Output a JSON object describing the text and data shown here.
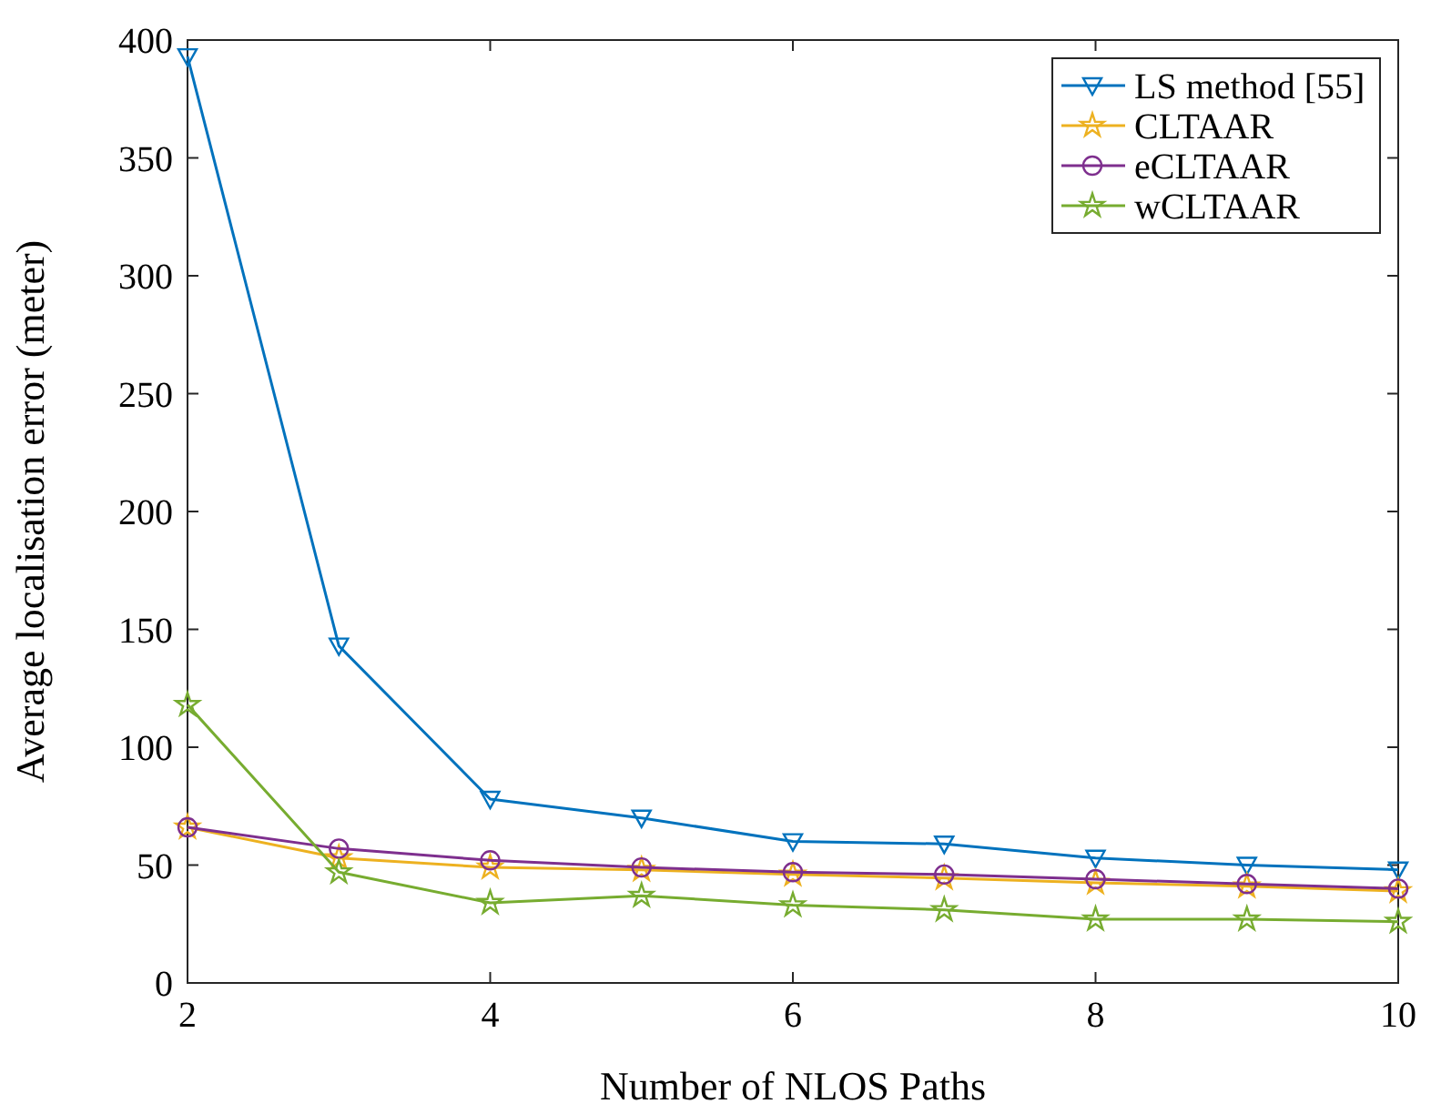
{
  "chart_data": {
    "type": "line",
    "xlabel": "Number of NLOS Paths",
    "ylabel": "Average localisation error (meter)",
    "x": [
      2,
      3,
      4,
      5,
      6,
      7,
      8,
      9,
      10
    ],
    "series": [
      {
        "name": "LS method [55]",
        "color": "#0072bd",
        "marker": "triangle",
        "values": [
          393,
          143,
          78,
          70,
          60,
          59,
          53,
          50,
          48
        ]
      },
      {
        "name": "CLTAAR",
        "color": "#edb120",
        "marker": "star",
        "values": [
          66,
          53,
          49,
          48,
          46,
          44.5,
          42.5,
          41,
          39
        ]
      },
      {
        "name": "eCLTAAR",
        "color": "#7e2f8e",
        "marker": "circle",
        "values": [
          66,
          57,
          52,
          49,
          47,
          46,
          44,
          42,
          40
        ]
      },
      {
        "name": "wCLTAAR",
        "color": "#77ac30",
        "marker": "star",
        "values": [
          118,
          47,
          34,
          37,
          33,
          31,
          27,
          27,
          26
        ]
      }
    ],
    "xlim": [
      2,
      10
    ],
    "xticks": [
      2,
      4,
      6,
      8,
      10
    ],
    "ylim": [
      0,
      400
    ],
    "yticks": [
      0,
      50,
      100,
      150,
      200,
      250,
      300,
      350,
      400
    ],
    "grid": false,
    "legend": "top right",
    "line_style": "solid"
  }
}
